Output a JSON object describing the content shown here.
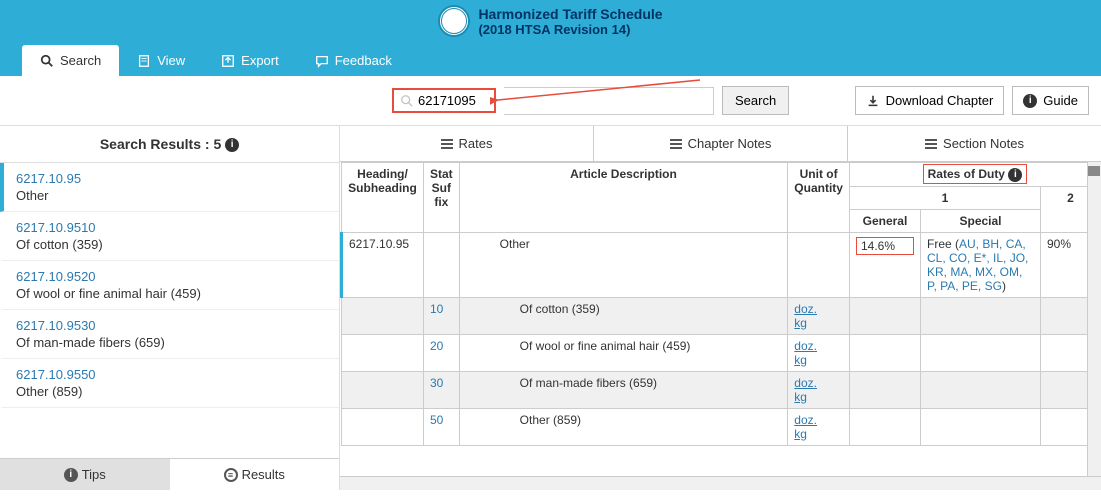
{
  "header": {
    "title": "Harmonized Tariff Schedule",
    "subtitle": "(2018 HTSA Revision 14)"
  },
  "topnav": {
    "search": "Search",
    "view": "View",
    "export": "Export",
    "feedback": "Feedback"
  },
  "toolbar": {
    "search_value": "62171095",
    "search_btn": "Search",
    "download": "Download Chapter",
    "guide": "Guide"
  },
  "search_results": {
    "label": "Search Results :",
    "count": "5",
    "items": [
      {
        "code": "6217.10.95",
        "desc": "Other",
        "active": true
      },
      {
        "code": "6217.10.9510",
        "desc": "Of cotton (359)",
        "active": false
      },
      {
        "code": "6217.10.9520",
        "desc": "Of wool or fine animal hair (459)",
        "active": false
      },
      {
        "code": "6217.10.9530",
        "desc": "Of man-made fibers (659)",
        "active": false
      },
      {
        "code": "6217.10.9550",
        "desc": "Other (859)",
        "active": false
      }
    ]
  },
  "left_tabs": {
    "tips": "Tips",
    "results": "Results"
  },
  "content_tabs": {
    "rates": "Rates",
    "chapter": "Chapter Notes",
    "section": "Section Notes"
  },
  "table": {
    "headers": {
      "heading": "Heading/ Subheading",
      "suffix": "Stat Suf fix",
      "article": "Article Description",
      "unit": "Unit of Quantity",
      "rates": "Rates of Duty",
      "one": "1",
      "general": "General",
      "special": "Special",
      "two": "2"
    },
    "main_row": {
      "heading": "6217.10.95",
      "article": "Other",
      "general": "14.6%",
      "special_prefix": "Free (",
      "special_codes": "AU, BH, CA, CL, CO, E*, IL, JO, KR, MA, MX, OM, P, PA, PE, SG",
      "special_suffix": ")",
      "col2": "90%"
    },
    "sub_rows": [
      {
        "suffix": "10",
        "article": "Of cotton (359)",
        "unit1": "doz.",
        "unit2": "kg",
        "stripe": true
      },
      {
        "suffix": "20",
        "article": "Of wool or fine animal hair (459)",
        "unit1": "doz.",
        "unit2": "kg",
        "stripe": false
      },
      {
        "suffix": "30",
        "article": "Of man-made fibers (659)",
        "unit1": "doz.",
        "unit2": "kg",
        "stripe": true
      },
      {
        "suffix": "50",
        "article": "Other (859)",
        "unit1": "doz.",
        "unit2": "kg",
        "stripe": false
      }
    ]
  },
  "colors": {
    "brand": "#2eaed6",
    "link": "#2a7ab0",
    "highlight": "#e74c3c"
  }
}
